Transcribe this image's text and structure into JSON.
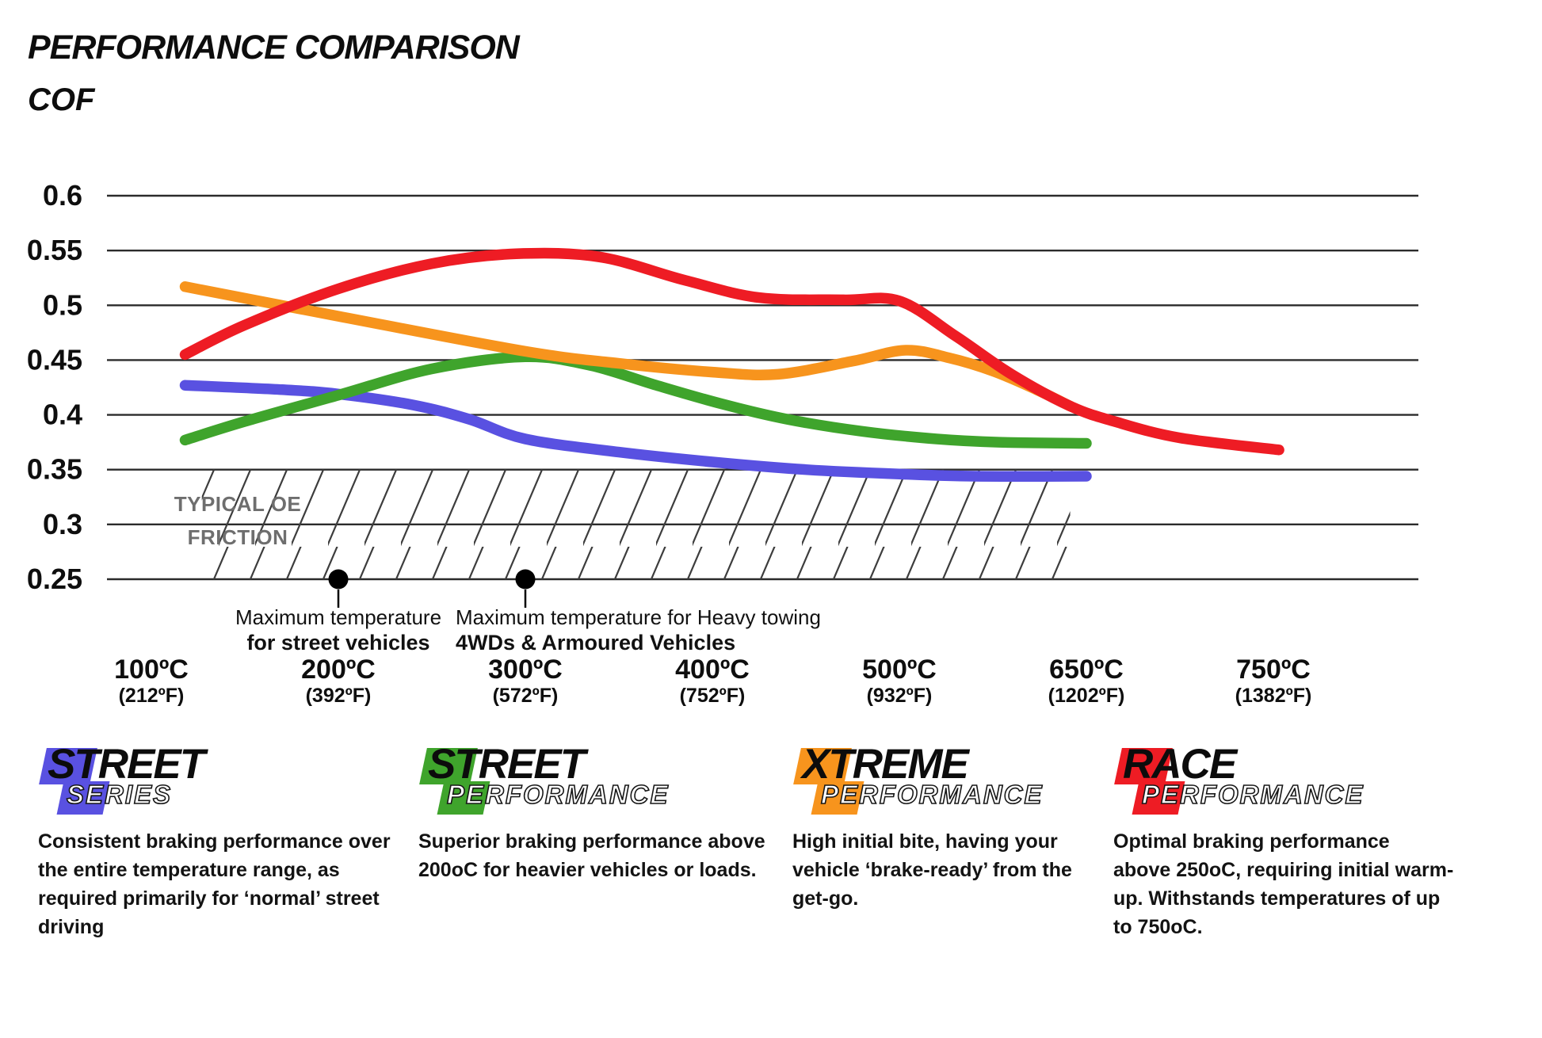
{
  "header": {
    "title": "PERFORMANCE COMPARISON",
    "y_axis_label": "COF"
  },
  "chart_data": {
    "type": "line",
    "title": "PERFORMANCE COMPARISON",
    "ylabel": "COF",
    "grid": true,
    "ylim": [
      0.25,
      0.6
    ],
    "y_ticks": [
      0.6,
      0.55,
      0.5,
      0.45,
      0.4,
      0.35,
      0.3,
      0.25
    ],
    "x_ticks": [
      {
        "temp": 100,
        "label_c": "100ºC",
        "label_f": "(212ºF)"
      },
      {
        "temp": 200,
        "label_c": "200ºC",
        "label_f": "(392ºF)"
      },
      {
        "temp": 300,
        "label_c": "300ºC",
        "label_f": "(572ºF)"
      },
      {
        "temp": 400,
        "label_c": "400ºC",
        "label_f": "(752ºF)"
      },
      {
        "temp": 500,
        "label_c": "500ºC",
        "label_f": "(932ºF)"
      },
      {
        "temp": 650,
        "label_c": "650ºC",
        "label_f": "(1202ºF)"
      },
      {
        "temp": 750,
        "label_c": "750ºC",
        "label_f": "(1382ºF)"
      }
    ],
    "series": [
      {
        "name": "Street Series",
        "color": "#5951e1",
        "points": [
          [
            118,
            0.427
          ],
          [
            170,
            0.423
          ],
          [
            200,
            0.419
          ],
          [
            240,
            0.409
          ],
          [
            270,
            0.396
          ],
          [
            300,
            0.378
          ],
          [
            350,
            0.366
          ],
          [
            400,
            0.357
          ],
          [
            450,
            0.35
          ],
          [
            500,
            0.346
          ],
          [
            560,
            0.344
          ],
          [
            650,
            0.344
          ]
        ]
      },
      {
        "name": "Street Performance",
        "color": "#3fa42c",
        "points": [
          [
            118,
            0.377
          ],
          [
            150,
            0.394
          ],
          [
            200,
            0.418
          ],
          [
            250,
            0.442
          ],
          [
            300,
            0.453
          ],
          [
            335,
            0.445
          ],
          [
            370,
            0.427
          ],
          [
            405,
            0.41
          ],
          [
            440,
            0.396
          ],
          [
            480,
            0.385
          ],
          [
            530,
            0.378
          ],
          [
            580,
            0.375
          ],
          [
            650,
            0.374
          ]
        ]
      },
      {
        "name": "Xtreme Performance",
        "color": "#f7941d",
        "points": [
          [
            118,
            0.517
          ],
          [
            200,
            0.49
          ],
          [
            300,
            0.458
          ],
          [
            350,
            0.447
          ],
          [
            400,
            0.439
          ],
          [
            435,
            0.437
          ],
          [
            475,
            0.449
          ],
          [
            505,
            0.459
          ],
          [
            540,
            0.452
          ],
          [
            575,
            0.44
          ],
          [
            610,
            0.423
          ],
          [
            637,
            0.408
          ]
        ]
      },
      {
        "name": "Race Performance",
        "color": "#ee1c24",
        "points": [
          [
            118,
            0.455
          ],
          [
            150,
            0.482
          ],
          [
            200,
            0.515
          ],
          [
            250,
            0.538
          ],
          [
            295,
            0.547
          ],
          [
            340,
            0.544
          ],
          [
            385,
            0.523
          ],
          [
            425,
            0.507
          ],
          [
            470,
            0.505
          ],
          [
            500,
            0.504
          ],
          [
            545,
            0.472
          ],
          [
            590,
            0.437
          ],
          [
            637,
            0.408
          ],
          [
            665,
            0.394
          ],
          [
            700,
            0.379
          ],
          [
            753,
            0.368
          ]
        ]
      }
    ],
    "oe_band": {
      "label_line1": "TYPICAL OE",
      "label_line2": "FRICTION",
      "cof_from": 0.25,
      "cof_to": 0.35,
      "temp_from": 127,
      "temp_to": 637
    },
    "annotations": [
      {
        "temp": 200,
        "cof": 0.25,
        "align": "center",
        "line1": "Maximum temperature",
        "line2": "for street vehicles"
      },
      {
        "temp": 300,
        "cof": 0.25,
        "align": "left",
        "line1": "Maximum temperature for Heavy towing",
        "line2": "4WDs & Armoured Vehicles"
      }
    ]
  },
  "legend": [
    {
      "word1": "STREET",
      "word2": "SERIES",
      "color": "#5951e1",
      "description_lines": [
        "Consistent braking performance over",
        "the entire temperature range, as",
        "required primarily for ‘normal’ street",
        "driving"
      ]
    },
    {
      "word1": "STREET",
      "word2": "PERFORMANCE",
      "color": "#3fa42c",
      "description_lines": [
        "Superior braking performance above",
        "200oC for heavier vehicles or loads."
      ]
    },
    {
      "word1": "XTREME",
      "word2": "PERFORMANCE",
      "color": "#f7941d",
      "description_lines": [
        "High initial bite, having your",
        "vehicle ‘brake-ready’ from the",
        "get-go."
      ]
    },
    {
      "word1": "RACE",
      "word2": "PERFORMANCE",
      "color": "#ee1c24",
      "description_lines": [
        "Optimal braking performance",
        "above 250oC, requiring initial warm-",
        "up. Withstands temperatures of up",
        "to 750oC."
      ]
    }
  ]
}
